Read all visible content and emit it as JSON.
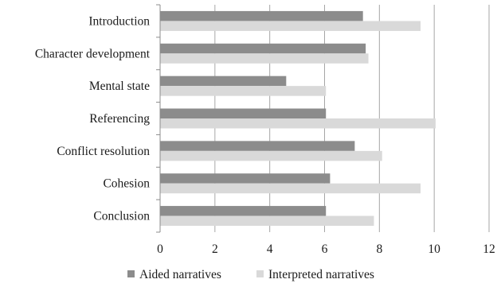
{
  "chart_data": {
    "type": "bar",
    "orientation": "horizontal",
    "categories": [
      "Introduction",
      "Character development",
      "Mental state",
      "Referencing",
      "Conflict resolution",
      "Cohesion",
      "Conclusion"
    ],
    "series": [
      {
        "name": "Aided narratives",
        "color": "#8c8c8c",
        "values": [
          7.4,
          7.5,
          4.6,
          6.05,
          7.1,
          6.2,
          6.05
        ]
      },
      {
        "name": "Interpreted narratives",
        "color": "#d9d9d9",
        "values": [
          9.5,
          7.6,
          6.05,
          10.05,
          8.1,
          9.5,
          7.8
        ]
      }
    ],
    "xlim": [
      0,
      12
    ],
    "xticks": [
      "0",
      "2",
      "4",
      "6",
      "8",
      "10",
      "12"
    ],
    "grid": "vertical",
    "legend": "bottom"
  }
}
